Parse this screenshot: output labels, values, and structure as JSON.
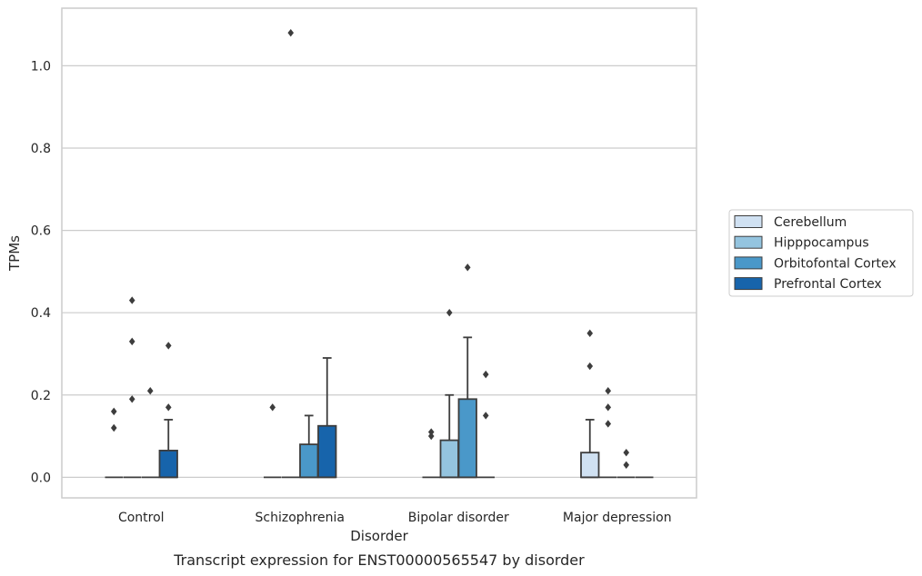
{
  "caption": "Transcript expression for ENST00000565547 by disorder",
  "chart_data": {
    "type": "box",
    "title": "",
    "xlabel": "Disorder",
    "ylabel": "TPMs",
    "ylim": [
      -0.05,
      1.14
    ],
    "yticks": [
      "0.0",
      "0.2",
      "0.4",
      "0.6",
      "0.8",
      "1.0"
    ],
    "ytick_values": [
      0.0,
      0.2,
      0.4,
      0.6,
      0.8,
      1.0
    ],
    "grid": "horizontal",
    "legend_position": "right",
    "categories": [
      "Control",
      "Schizophrenia",
      "Bipolar disorder",
      "Major depression"
    ],
    "series": [
      {
        "name": "Cerebellum",
        "color": "#d0e1f2",
        "boxes": [
          {
            "q1": 0,
            "median": 0,
            "q3": 0,
            "whisker_low": 0,
            "whisker_high": 0,
            "outliers": [
              0.12,
              0.16
            ]
          },
          {
            "q1": 0,
            "median": 0,
            "q3": 0,
            "whisker_low": 0,
            "whisker_high": 0,
            "outliers": [
              0.17
            ]
          },
          {
            "q1": 0,
            "median": 0,
            "q3": 0,
            "whisker_low": 0,
            "whisker_high": 0,
            "outliers": [
              0.1,
              0.11
            ]
          },
          {
            "q1": 0,
            "median": 0,
            "q3": 0.06,
            "whisker_low": 0,
            "whisker_high": 0.14,
            "outliers": [
              0.27,
              0.35
            ]
          }
        ]
      },
      {
        "name": "Hipppocampus",
        "color": "#94c4df",
        "boxes": [
          {
            "q1": 0,
            "median": 0,
            "q3": 0,
            "whisker_low": 0,
            "whisker_high": 0,
            "outliers": [
              0.19,
              0.33,
              0.43
            ]
          },
          {
            "q1": 0,
            "median": 0,
            "q3": 0,
            "whisker_low": 0,
            "whisker_high": 0,
            "outliers": [
              1.08
            ]
          },
          {
            "q1": 0,
            "median": 0,
            "q3": 0.09,
            "whisker_low": 0,
            "whisker_high": 0.2,
            "outliers": [
              0.4
            ]
          },
          {
            "q1": 0,
            "median": 0,
            "q3": 0,
            "whisker_low": 0,
            "whisker_high": 0,
            "outliers": [
              0.13,
              0.17,
              0.21
            ]
          }
        ]
      },
      {
        "name": "Orbitofontal Cortex",
        "color": "#4a98c9",
        "boxes": [
          {
            "q1": 0,
            "median": 0,
            "q3": 0,
            "whisker_low": 0,
            "whisker_high": 0,
            "outliers": [
              0.21
            ]
          },
          {
            "q1": 0,
            "median": 0,
            "q3": 0.08,
            "whisker_low": 0,
            "whisker_high": 0.15,
            "outliers": []
          },
          {
            "q1": 0,
            "median": 0,
            "q3": 0.19,
            "whisker_low": 0,
            "whisker_high": 0.34,
            "outliers": [
              0.51
            ]
          },
          {
            "q1": 0,
            "median": 0,
            "q3": 0,
            "whisker_low": 0,
            "whisker_high": 0,
            "outliers": [
              0.03,
              0.06
            ]
          }
        ]
      },
      {
        "name": "Prefrontal Cortex",
        "color": "#1764ab",
        "boxes": [
          {
            "q1": 0,
            "median": 0,
            "q3": 0.065,
            "whisker_low": 0,
            "whisker_high": 0.14,
            "outliers": [
              0.17,
              0.32
            ]
          },
          {
            "q1": 0,
            "median": 0,
            "q3": 0.125,
            "whisker_low": 0,
            "whisker_high": 0.29,
            "outliers": []
          },
          {
            "q1": 0,
            "median": 0,
            "q3": 0,
            "whisker_low": 0,
            "whisker_high": 0,
            "outliers": [
              0.15,
              0.25
            ]
          },
          {
            "q1": 0,
            "median": 0,
            "q3": 0,
            "whisker_low": 0,
            "whisker_high": 0,
            "outliers": []
          }
        ]
      }
    ]
  }
}
